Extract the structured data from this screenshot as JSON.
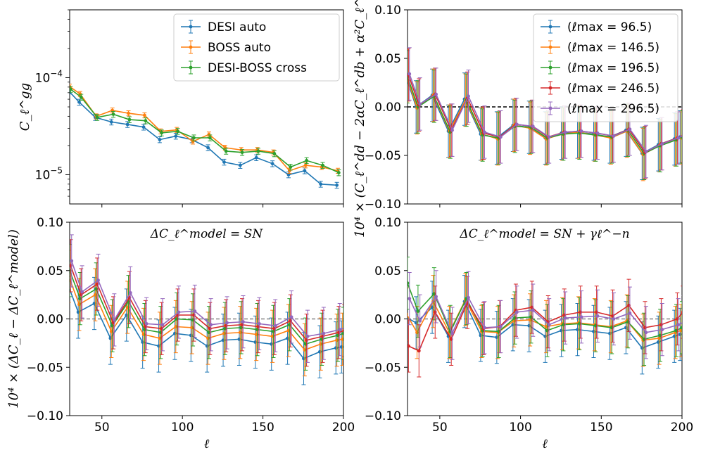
{
  "colors": {
    "blue": "#1f77b4",
    "orange": "#ff7f0e",
    "green": "#2ca02c",
    "red": "#d62728",
    "purple": "#9467bd"
  },
  "chart_data": [
    {
      "panel": "top-left",
      "type": "line",
      "yscale": "log",
      "title": "",
      "xlabel": "",
      "ylabel": "C_ℓ^gg",
      "xlim": [
        30,
        200
      ],
      "ylim": [
        5e-06,
        0.0005
      ],
      "xticks": [
        50,
        100,
        150,
        200
      ],
      "yticks": [
        {
          "value": 0.0001,
          "base": "10",
          "exp": "−4"
        },
        {
          "value": 1e-05,
          "base": "10",
          "exp": "−5"
        }
      ],
      "legend_position": "top-right",
      "x": [
        30,
        36.5,
        46.5,
        56.5,
        66.5,
        76.5,
        86.5,
        96.5,
        106.5,
        116.5,
        126.5,
        136.5,
        146.5,
        156.5,
        166.5,
        176.5,
        186.5,
        196.5
      ],
      "series": [
        {
          "name": "DESI auto",
          "color": "#1f77b4",
          "values": [
            7.3e-05,
            5.6e-05,
            3.9e-05,
            3.5e-05,
            3.3e-05,
            3.1e-05,
            2.3e-05,
            2.5e-05,
            2.3e-05,
            1.9e-05,
            1.35e-05,
            1.25e-05,
            1.5e-05,
            1.3e-05,
            1e-05,
            1.1e-05,
            8e-06,
            7.8e-06
          ],
          "err_frac": 0.07
        },
        {
          "name": "BOSS auto",
          "color": "#ff7f0e",
          "values": [
            8.1e-05,
            6.8e-05,
            4e-05,
            4.6e-05,
            4.3e-05,
            4.1e-05,
            2.8e-05,
            2.9e-05,
            2.2e-05,
            2.6e-05,
            1.9e-05,
            1.8e-05,
            1.8e-05,
            1.7e-05,
            1.1e-05,
            1.25e-05,
            1.2e-05,
            1.1e-05
          ],
          "err_frac": 0.06
        },
        {
          "name": "DESI-BOSS cross",
          "color": "#2ca02c",
          "values": [
            7.6e-05,
            6.3e-05,
            3.9e-05,
            4.2e-05,
            3.7e-05,
            3.6e-05,
            2.7e-05,
            2.8e-05,
            2.4e-05,
            2.4e-05,
            1.75e-05,
            1.7e-05,
            1.75e-05,
            1.65e-05,
            1.2e-05,
            1.4e-05,
            1.25e-05,
            1.05e-05
          ],
          "err_frac": 0.07
        }
      ]
    },
    {
      "panel": "top-right",
      "type": "line",
      "title": "",
      "xlabel": "",
      "ylabel": "10⁴ × (C_ℓ^dd − 2αC_ℓ^db + α²C_ℓ^bb)",
      "xlim": [
        30,
        200
      ],
      "ylim": [
        -0.1,
        0.1
      ],
      "xticks": [
        50,
        100,
        150,
        200
      ],
      "yticks": [
        -0.1,
        -0.05,
        0.0,
        0.05,
        0.1
      ],
      "ytick_labels": [
        "−0.10",
        "−0.05",
        "0.00",
        "0.05",
        "0.10"
      ],
      "zero_line": "black dashed",
      "legend_position": "top-right",
      "x": [
        30,
        36.5,
        46.5,
        56.5,
        66.5,
        76.5,
        86.5,
        96.5,
        106.5,
        116.5,
        126.5,
        136.5,
        146.5,
        156.5,
        166.5,
        176.5,
        186.5,
        196.5,
        200
      ],
      "error": 0.027,
      "series": [
        {
          "name": "(ℓmax = 96.5)",
          "color": "#1f77b4",
          "values": [
            0.033,
            0.0,
            0.012,
            -0.025,
            0.008,
            -0.028,
            -0.032,
            -0.019,
            -0.021,
            -0.032,
            -0.027,
            -0.026,
            -0.028,
            -0.031,
            -0.024,
            -0.048,
            -0.039,
            -0.033,
            -0.031
          ]
        },
        {
          "name": "(ℓmax = 146.5)",
          "color": "#ff7f0e",
          "values": [
            0.032,
            -0.001,
            0.012,
            -0.025,
            0.007,
            -0.028,
            -0.033,
            -0.019,
            -0.022,
            -0.033,
            -0.028,
            -0.026,
            -0.029,
            -0.032,
            -0.025,
            -0.049,
            -0.04,
            -0.034,
            -0.032
          ]
        },
        {
          "name": "(ℓmax = 196.5)",
          "color": "#2ca02c",
          "values": [
            0.031,
            0.0,
            0.011,
            -0.026,
            0.007,
            -0.029,
            -0.032,
            -0.02,
            -0.021,
            -0.032,
            -0.028,
            -0.027,
            -0.029,
            -0.031,
            -0.024,
            -0.048,
            -0.04,
            -0.034,
            -0.031
          ]
        },
        {
          "name": "(ℓmax = 246.5)",
          "color": "#d62728",
          "values": [
            0.033,
            0.002,
            0.013,
            -0.024,
            0.009,
            -0.027,
            -0.031,
            -0.018,
            -0.02,
            -0.031,
            -0.026,
            -0.025,
            -0.027,
            -0.03,
            -0.023,
            -0.047,
            -0.038,
            -0.032,
            -0.03
          ]
        },
        {
          "name": "(ℓmax = 296.5)",
          "color": "#9467bd",
          "values": [
            0.034,
            0.003,
            0.013,
            -0.024,
            0.011,
            -0.026,
            -0.031,
            -0.018,
            -0.02,
            -0.031,
            -0.026,
            -0.025,
            -0.027,
            -0.03,
            -0.023,
            -0.046,
            -0.038,
            -0.032,
            -0.029
          ]
        }
      ]
    },
    {
      "panel": "bottom-left",
      "type": "line",
      "title": "ΔC_ℓ^model = SN",
      "xlabel": "ℓ",
      "ylabel": "10⁴ × (ΔC_ℓ − ΔC_ℓ^model)",
      "xlim": [
        30,
        200
      ],
      "ylim": [
        -0.1,
        0.1
      ],
      "xticks": [
        50,
        100,
        150,
        200
      ],
      "yticks": [
        -0.1,
        -0.05,
        0.0,
        0.05,
        0.1
      ],
      "ytick_labels": [
        "−0.10",
        "−0.05",
        "0.00",
        "0.05",
        "0.10"
      ],
      "zero_line": "gray dashed",
      "x": [
        30,
        36.5,
        46.5,
        56.5,
        66.5,
        76.5,
        86.5,
        96.5,
        106.5,
        116.5,
        126.5,
        136.5,
        146.5,
        156.5,
        166.5,
        176.5,
        186.5,
        196.5,
        200
      ],
      "error": 0.027,
      "series": [
        {
          "name": "ℓmax = 96.5",
          "color": "#1f77b4",
          "values": [
            0.036,
            0.007,
            0.016,
            -0.02,
            0.004,
            -0.024,
            -0.028,
            -0.015,
            -0.017,
            -0.028,
            -0.022,
            -0.021,
            -0.024,
            -0.026,
            -0.02,
            -0.041,
            -0.034,
            -0.03,
            -0.029
          ]
        },
        {
          "name": "ℓmax = 146.5",
          "color": "#ff7f0e",
          "values": [
            0.044,
            0.015,
            0.025,
            -0.013,
            0.012,
            -0.016,
            -0.02,
            -0.008,
            -0.009,
            -0.02,
            -0.015,
            -0.014,
            -0.016,
            -0.018,
            -0.012,
            -0.032,
            -0.026,
            -0.022,
            -0.021
          ]
        },
        {
          "name": "ℓmax = 196.5",
          "color": "#2ca02c",
          "values": [
            0.05,
            0.021,
            0.031,
            -0.007,
            0.018,
            -0.011,
            -0.014,
            0.0,
            -0.001,
            -0.014,
            -0.01,
            -0.009,
            -0.011,
            -0.013,
            -0.006,
            -0.026,
            -0.021,
            -0.017,
            -0.015
          ]
        },
        {
          "name": "ℓmax = 246.5",
          "color": "#d62728",
          "values": [
            0.055,
            0.025,
            0.036,
            -0.004,
            0.022,
            -0.008,
            -0.01,
            0.004,
            0.004,
            -0.01,
            -0.007,
            -0.006,
            -0.008,
            -0.01,
            -0.002,
            -0.022,
            -0.018,
            -0.014,
            -0.012
          ]
        },
        {
          "name": "ℓmax = 296.5",
          "color": "#9467bd",
          "values": [
            0.06,
            0.028,
            0.04,
            -0.001,
            0.027,
            -0.005,
            -0.006,
            0.007,
            0.008,
            -0.006,
            -0.004,
            -0.003,
            -0.005,
            -0.007,
            0.002,
            -0.018,
            -0.015,
            -0.011,
            -0.009
          ]
        }
      ]
    },
    {
      "panel": "bottom-right",
      "type": "line",
      "title": "ΔC_ℓ^model = SN + γℓ^−n",
      "xlabel": "ℓ",
      "ylabel": "",
      "xlim": [
        30,
        200
      ],
      "ylim": [
        -0.1,
        0.1
      ],
      "xticks": [
        50,
        100,
        150,
        200
      ],
      "yticks": [
        -0.1,
        -0.05,
        0.0,
        0.05,
        0.1
      ],
      "ytick_labels": [
        "−0.10",
        "−0.05",
        "0.00",
        "0.05",
        "0.10"
      ],
      "zero_line": "gray dashed",
      "x": [
        30,
        36.5,
        46.5,
        56.5,
        66.5,
        76.5,
        86.5,
        96.5,
        106.5,
        116.5,
        126.5,
        136.5,
        146.5,
        156.5,
        166.5,
        176.5,
        186.5,
        196.5,
        200
      ],
      "error": 0.027,
      "series": [
        {
          "name": "ℓmax = 96.5",
          "color": "#1f77b4",
          "values": [
            0.002,
            -0.004,
            0.012,
            -0.018,
            0.018,
            -0.017,
            -0.019,
            -0.006,
            -0.007,
            -0.018,
            -0.012,
            -0.011,
            -0.013,
            -0.015,
            -0.009,
            -0.03,
            -0.024,
            -0.018,
            -0.016
          ]
        },
        {
          "name": "ℓmax = 146.5",
          "color": "#ff7f0e",
          "values": [
            0.005,
            -0.014,
            0.018,
            -0.014,
            0.02,
            -0.013,
            -0.014,
            -0.002,
            -0.001,
            -0.008,
            -0.005,
            -0.004,
            -0.006,
            -0.008,
            -0.002,
            -0.022,
            -0.02,
            -0.014,
            -0.012
          ]
        },
        {
          "name": "ℓmax = 196.5",
          "color": "#2ca02c",
          "values": [
            0.037,
            0.008,
            0.026,
            -0.013,
            0.021,
            -0.012,
            -0.013,
            0.001,
            0.002,
            -0.012,
            -0.006,
            -0.005,
            -0.007,
            -0.009,
            -0.003,
            -0.021,
            -0.017,
            -0.012,
            -0.009
          ]
        },
        {
          "name": "ℓmax = 246.5",
          "color": "#d62728",
          "values": [
            -0.028,
            -0.033,
            0.007,
            -0.021,
            0.017,
            -0.01,
            -0.008,
            0.009,
            0.012,
            -0.003,
            0.004,
            0.007,
            0.007,
            0.003,
            0.014,
            -0.009,
            -0.006,
            0.0,
            0.007
          ]
        },
        {
          "name": "ℓmax = 296.5",
          "color": "#9467bd",
          "values": [
            0.021,
            -0.002,
            0.023,
            -0.015,
            0.022,
            -0.009,
            -0.008,
            0.007,
            0.009,
            -0.006,
            0.001,
            0.002,
            0.003,
            0.0,
            0.006,
            -0.014,
            -0.011,
            -0.006,
            -0.003
          ]
        }
      ]
    }
  ]
}
